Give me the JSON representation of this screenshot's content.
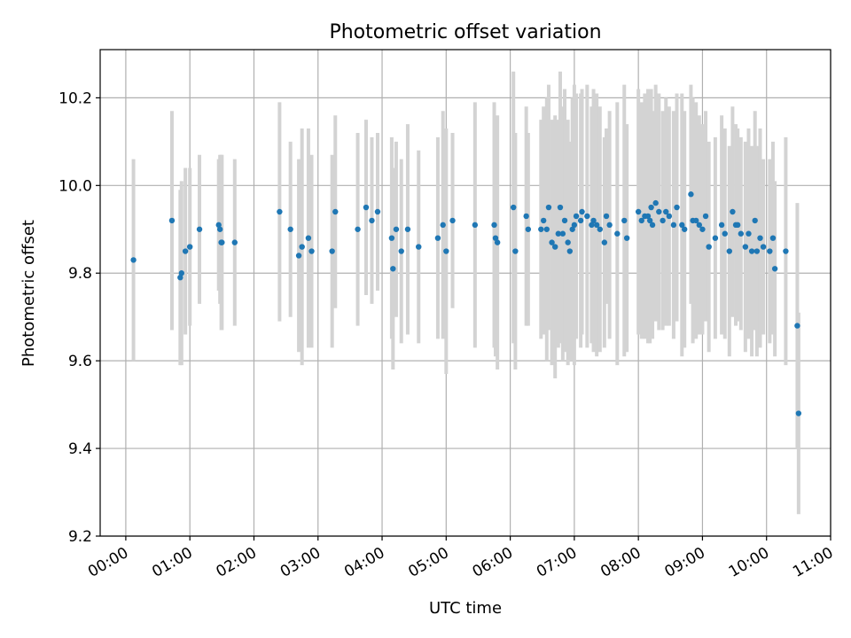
{
  "chart_data": {
    "type": "scatter",
    "title": "Photometric offset variation",
    "xlabel": "UTC time",
    "ylabel": "Photometric offset",
    "x_unit": "hours",
    "xlim": [
      -0.4,
      11.0
    ],
    "ylim": [
      9.2,
      10.31
    ],
    "x_ticks": [
      0,
      1,
      2,
      3,
      4,
      5,
      6,
      7,
      8,
      9,
      10,
      11
    ],
    "x_tick_labels": [
      "00:00",
      "01:00",
      "02:00",
      "03:00",
      "04:00",
      "05:00",
      "06:00",
      "07:00",
      "08:00",
      "09:00",
      "10:00",
      "11:00"
    ],
    "y_ticks": [
      9.2,
      9.4,
      9.6,
      9.8,
      10.0,
      10.2
    ],
    "y_tick_labels": [
      "9.2",
      "9.4",
      "9.6",
      "9.8",
      "10.0",
      "10.2"
    ],
    "grid": true,
    "marker_color": "#1f77b4",
    "errorbar_color": "#d3d3d3",
    "series": [
      {
        "name": "offset",
        "x": [
          0.12,
          0.72,
          0.85,
          0.87,
          0.93,
          1.0,
          1.15,
          1.45,
          1.47,
          1.49,
          1.5,
          1.7,
          2.4,
          2.57,
          2.7,
          2.75,
          2.85,
          2.9,
          3.22,
          3.27,
          3.62,
          3.75,
          3.84,
          3.93,
          4.15,
          4.17,
          4.22,
          4.3,
          4.4,
          4.57,
          4.87,
          4.95,
          5.0,
          5.1,
          5.45,
          5.75,
          5.77,
          5.8,
          6.05,
          6.08,
          6.25,
          6.28,
          6.48,
          6.52,
          6.57,
          6.6,
          6.65,
          6.7,
          6.75,
          6.78,
          6.82,
          6.85,
          6.9,
          6.93,
          6.97,
          7.0,
          7.03,
          7.1,
          7.12,
          7.2,
          7.27,
          7.3,
          7.35,
          7.4,
          7.47,
          7.5,
          7.55,
          7.67,
          7.78,
          7.82,
          8.0,
          8.05,
          8.1,
          8.15,
          8.18,
          8.2,
          8.22,
          8.27,
          8.32,
          8.38,
          8.43,
          8.48,
          8.55,
          8.6,
          8.68,
          8.72,
          8.82,
          8.85,
          8.9,
          8.95,
          9.0,
          9.05,
          9.1,
          9.2,
          9.3,
          9.35,
          9.42,
          9.47,
          9.52,
          9.55,
          9.6,
          9.67,
          9.72,
          9.77,
          9.82,
          9.85,
          9.9,
          9.95,
          10.05,
          10.1,
          10.13,
          10.3,
          10.48,
          10.5
        ],
        "y": [
          9.83,
          9.92,
          9.79,
          9.8,
          9.85,
          9.86,
          9.9,
          9.91,
          9.9,
          9.87,
          9.87,
          9.87,
          9.94,
          9.9,
          9.84,
          9.86,
          9.88,
          9.85,
          9.85,
          9.94,
          9.9,
          9.95,
          9.92,
          9.94,
          9.88,
          9.81,
          9.9,
          9.85,
          9.9,
          9.86,
          9.88,
          9.91,
          9.85,
          9.92,
          9.91,
          9.91,
          9.88,
          9.87,
          9.95,
          9.85,
          9.93,
          9.9,
          9.9,
          9.92,
          9.9,
          9.95,
          9.87,
          9.86,
          9.89,
          9.95,
          9.89,
          9.92,
          9.87,
          9.85,
          9.9,
          9.91,
          9.93,
          9.92,
          9.94,
          9.93,
          9.91,
          9.92,
          9.91,
          9.9,
          9.87,
          9.93,
          9.91,
          9.89,
          9.92,
          9.88,
          9.94,
          9.92,
          9.93,
          9.93,
          9.92,
          9.95,
          9.91,
          9.96,
          9.94,
          9.92,
          9.94,
          9.93,
          9.91,
          9.95,
          9.91,
          9.9,
          9.98,
          9.92,
          9.92,
          9.91,
          9.9,
          9.93,
          9.86,
          9.88,
          9.91,
          9.89,
          9.85,
          9.94,
          9.91,
          9.91,
          9.89,
          9.86,
          9.89,
          9.85,
          9.92,
          9.85,
          9.88,
          9.86,
          9.85,
          9.88,
          9.81,
          9.85,
          9.68,
          9.48
        ],
        "yerr": [
          0.23,
          0.25,
          0.2,
          0.21,
          0.19,
          0.18,
          0.17,
          0.15,
          0.17,
          0.2,
          0.2,
          0.19,
          0.25,
          0.2,
          0.22,
          0.27,
          0.25,
          0.22,
          0.22,
          0.22,
          0.22,
          0.2,
          0.19,
          0.18,
          0.23,
          0.23,
          0.2,
          0.21,
          0.24,
          0.22,
          0.23,
          0.26,
          0.28,
          0.2,
          0.28,
          0.28,
          0.27,
          0.29,
          0.31,
          0.27,
          0.25,
          0.22,
          0.25,
          0.26,
          0.3,
          0.28,
          0.28,
          0.3,
          0.26,
          0.31,
          0.29,
          0.3,
          0.28,
          0.25,
          0.3,
          0.32,
          0.28,
          0.29,
          0.28,
          0.3,
          0.27,
          0.3,
          0.3,
          0.28,
          0.24,
          0.2,
          0.26,
          0.3,
          0.31,
          0.26,
          0.28,
          0.27,
          0.28,
          0.29,
          0.28,
          0.27,
          0.26,
          0.27,
          0.27,
          0.25,
          0.26,
          0.25,
          0.26,
          0.26,
          0.3,
          0.27,
          0.25,
          0.28,
          0.27,
          0.25,
          0.24,
          0.24,
          0.24,
          0.23,
          0.25,
          0.24,
          0.24,
          0.24,
          0.23,
          0.22,
          0.22,
          0.24,
          0.24,
          0.24,
          0.25,
          0.24,
          0.25,
          0.2,
          0.21,
          0.22,
          0.2,
          0.26,
          0.28,
          0.23
        ]
      }
    ]
  }
}
